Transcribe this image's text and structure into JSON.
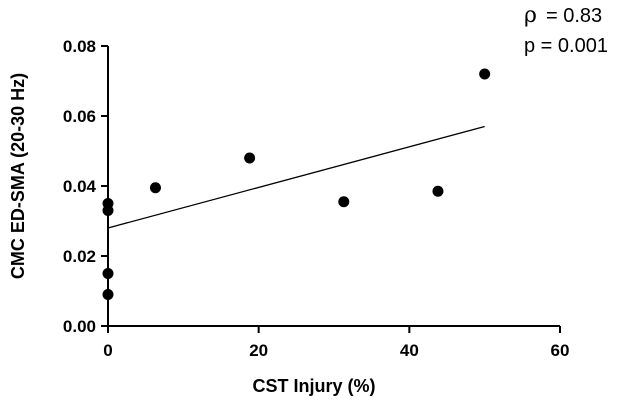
{
  "chart_data": {
    "type": "scatter",
    "title": "",
    "xlabel": "CST Injury (%)",
    "ylabel": "CMC ED-SMA (20-30 Hz)",
    "xlim": [
      0,
      60
    ],
    "ylim": [
      0,
      0.08
    ],
    "x_ticks": [
      "0",
      "20",
      "40",
      "60"
    ],
    "y_ticks": [
      "0.00",
      "0.02",
      "0.04",
      "0.06",
      "0.08"
    ],
    "x_tick_values": [
      0,
      20,
      40,
      60
    ],
    "y_tick_values": [
      0,
      0.02,
      0.04,
      0.06,
      0.08
    ],
    "points": [
      {
        "x": 0,
        "y": 0.009
      },
      {
        "x": 0,
        "y": 0.015
      },
      {
        "x": 0,
        "y": 0.033
      },
      {
        "x": 0,
        "y": 0.035
      },
      {
        "x": 6.3,
        "y": 0.0395
      },
      {
        "x": 18.8,
        "y": 0.048
      },
      {
        "x": 31.3,
        "y": 0.0355
      },
      {
        "x": 43.8,
        "y": 0.0385
      },
      {
        "x": 50,
        "y": 0.072
      }
    ],
    "fit_line": {
      "x": [
        0,
        50
      ],
      "y": [
        0.028,
        0.057
      ]
    },
    "grid": false,
    "annotations": {
      "rho_symbol": "ρ",
      "rho_value": "= 0.83",
      "p_text": "p = 0.001"
    }
  },
  "colors": {
    "marker": "#000000",
    "axis": "#000000",
    "background": "#ffffff"
  }
}
